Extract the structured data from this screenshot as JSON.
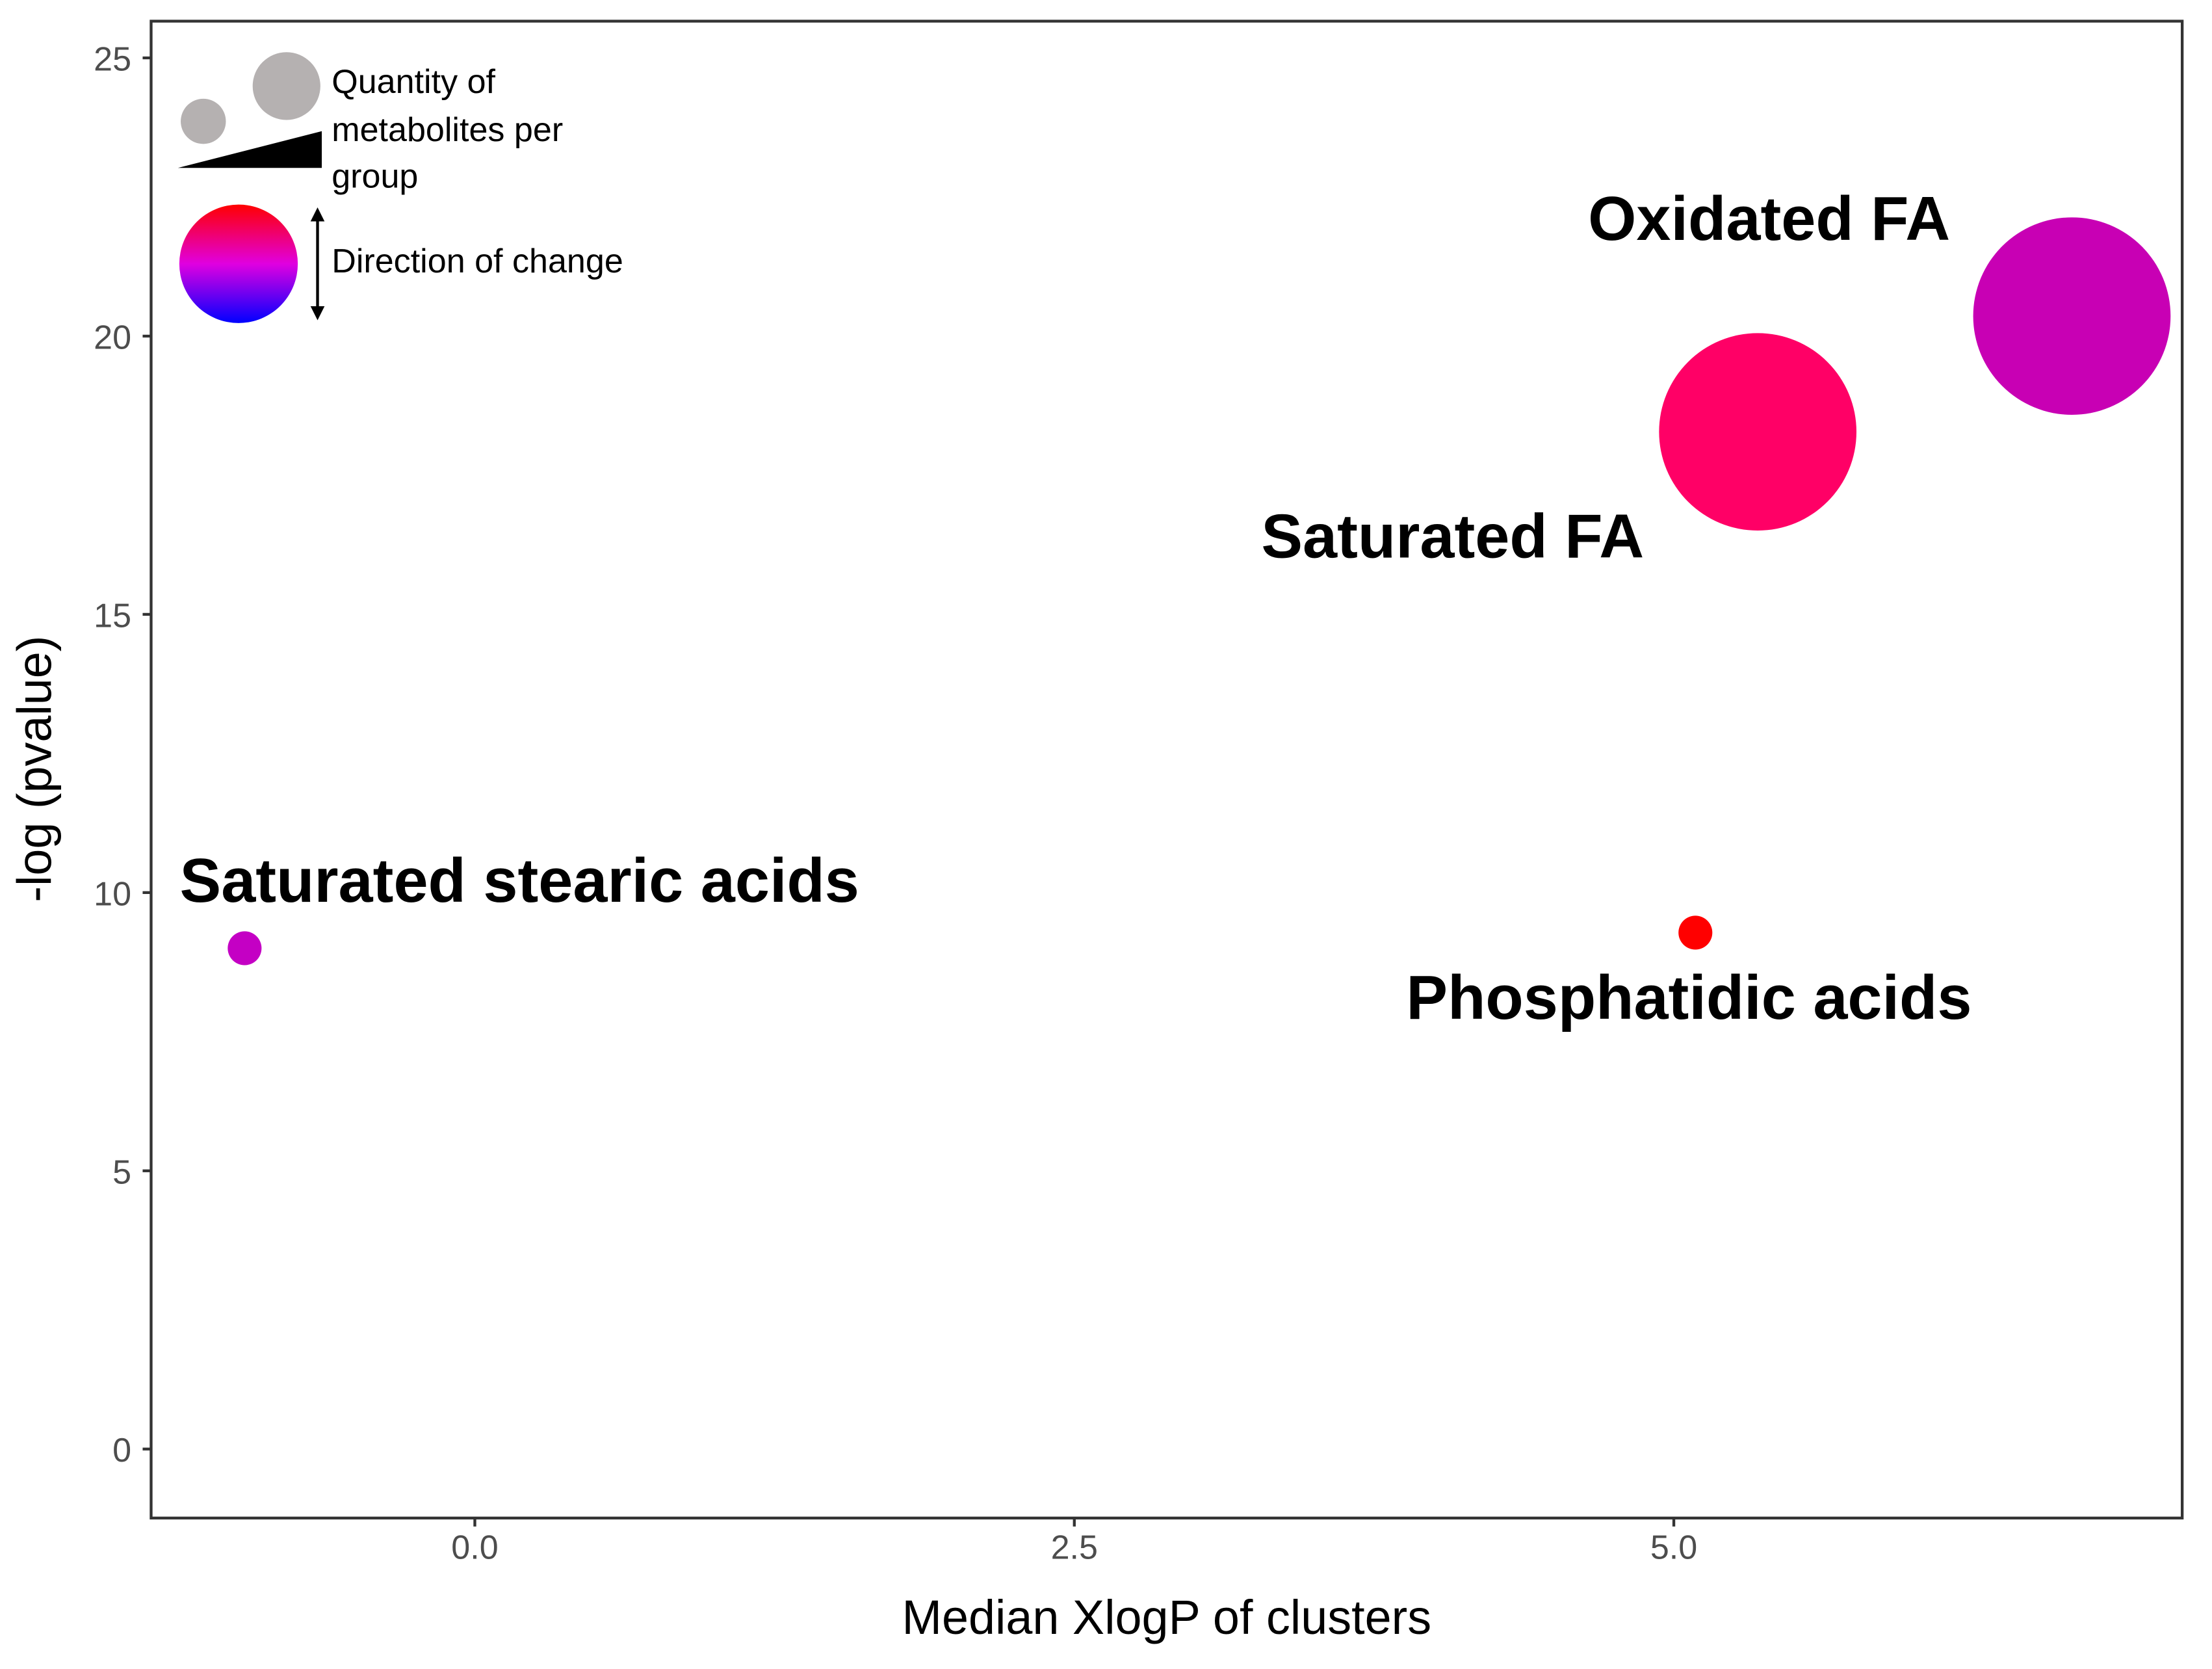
{
  "chart_data": {
    "type": "bubble",
    "x_label": "Median XlogP of clusters",
    "y_label": "-log (pvalue)",
    "xlim": [
      -1.35,
      7.12
    ],
    "ylim": [
      -1.24,
      25.66
    ],
    "xticks": [
      {
        "value": 0,
        "label": "0.0"
      },
      {
        "value": 2.5,
        "label": "2.5"
      },
      {
        "value": 5,
        "label": "5.0"
      }
    ],
    "yticks": [
      0,
      5,
      10,
      15,
      20,
      25
    ],
    "series": [
      {
        "labels": [
          "Saturated stearic acids",
          "Phosphatidic acids",
          "Saturated FA",
          "Oxidated FA"
        ],
        "x": [
          -0.96,
          5.09,
          5.35,
          6.66
        ],
        "values": [
          9.0,
          9.28,
          18.28,
          20.36
        ],
        "sizes": [
          1,
          1,
          34,
          34
        ],
        "colors": [
          "#c400c4",
          "#ff0000",
          "#ff0066",
          "#c800b4"
        ]
      }
    ],
    "legend": {
      "size_title": [
        "Quantity of",
        "metabolites per",
        "group"
      ],
      "color_title": "Direction of change"
    }
  }
}
